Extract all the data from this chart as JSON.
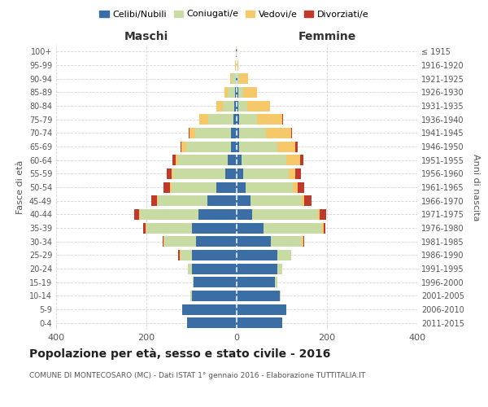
{
  "age_groups": [
    "0-4",
    "5-9",
    "10-14",
    "15-19",
    "20-24",
    "25-29",
    "30-34",
    "35-39",
    "40-44",
    "45-49",
    "50-54",
    "55-59",
    "60-64",
    "65-69",
    "70-74",
    "75-79",
    "80-84",
    "85-89",
    "90-94",
    "95-99",
    "100+"
  ],
  "birth_years": [
    "2011-2015",
    "2006-2010",
    "2001-2005",
    "1996-2000",
    "1991-1995",
    "1986-1990",
    "1981-1985",
    "1976-1980",
    "1971-1975",
    "1966-1970",
    "1961-1965",
    "1956-1960",
    "1951-1955",
    "1946-1950",
    "1941-1945",
    "1936-1940",
    "1931-1935",
    "1926-1930",
    "1921-1925",
    "1916-1920",
    "≤ 1915"
  ],
  "maschi": {
    "celibi": [
      110,
      120,
      100,
      95,
      100,
      100,
      90,
      100,
      85,
      65,
      45,
      25,
      20,
      12,
      12,
      8,
      5,
      4,
      2,
      0,
      1
    ],
    "coniugati": [
      0,
      0,
      2,
      3,
      8,
      25,
      70,
      100,
      130,
      110,
      100,
      115,
      110,
      100,
      80,
      55,
      25,
      15,
      8,
      2,
      1
    ],
    "vedovi": [
      0,
      0,
      0,
      0,
      0,
      2,
      2,
      2,
      2,
      2,
      3,
      5,
      5,
      10,
      12,
      20,
      15,
      8,
      5,
      2,
      0
    ],
    "divorziati": [
      0,
      0,
      0,
      0,
      0,
      2,
      2,
      5,
      10,
      12,
      15,
      10,
      8,
      2,
      2,
      0,
      0,
      0,
      0,
      0,
      0
    ]
  },
  "femmine": {
    "nubili": [
      100,
      110,
      95,
      85,
      90,
      90,
      75,
      60,
      35,
      30,
      20,
      15,
      10,
      5,
      5,
      5,
      3,
      3,
      1,
      0,
      0
    ],
    "coniugate": [
      0,
      0,
      2,
      5,
      10,
      30,
      70,
      130,
      145,
      115,
      105,
      100,
      100,
      85,
      60,
      40,
      20,
      12,
      5,
      1,
      0
    ],
    "vedove": [
      0,
      0,
      0,
      0,
      0,
      0,
      2,
      2,
      3,
      5,
      10,
      15,
      30,
      40,
      55,
      55,
      50,
      30,
      20,
      3,
      1
    ],
    "divorziate": [
      0,
      0,
      0,
      0,
      0,
      0,
      2,
      5,
      15,
      15,
      15,
      12,
      8,
      5,
      2,
      2,
      0,
      0,
      0,
      0,
      0
    ]
  },
  "colors": {
    "celibi_nubili": "#3a6ea5",
    "coniugati_e": "#c8dba3",
    "vedovi_e": "#f5c96a",
    "divorziati_e": "#c0392b"
  },
  "xlim": 400,
  "title": "Popolazione per età, sesso e stato civile - 2016",
  "subtitle": "COMUNE DI MONTECOSARO (MC) - Dati ISTAT 1° gennaio 2016 - Elaborazione TUTTITALIA.IT",
  "ylabel_left": "Fasce di età",
  "ylabel_right": "Anni di nascita",
  "xlabel_left": "Maschi",
  "xlabel_right": "Femmine",
  "background_color": "#ffffff",
  "grid_color": "#cccccc"
}
